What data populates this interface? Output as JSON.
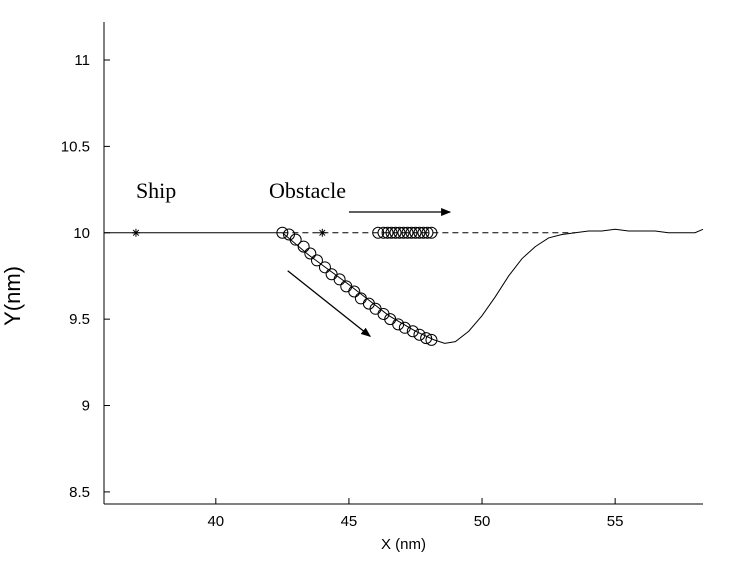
{
  "chart_data": {
    "type": "line",
    "title": "",
    "xlabel": "X (nm)",
    "ylabel": "Y(nm)",
    "xlim": [
      35.8,
      58.3
    ],
    "ylim": [
      8.43,
      11.22
    ],
    "xticks": [
      40,
      45,
      50,
      55
    ],
    "yticks": [
      8.5,
      9,
      9.5,
      10,
      10.5,
      11
    ],
    "grid": false,
    "annotations": [
      {
        "text": "Ship",
        "x": 37.0,
        "y": 10.2
      },
      {
        "text": "Obstacle",
        "x": 42.0,
        "y": 10.2
      }
    ],
    "markers": [
      {
        "name": "ship-start",
        "symbol": "*",
        "x": 37.0,
        "y": 10.0
      },
      {
        "name": "obstacle-start",
        "symbol": "*",
        "x": 44.0,
        "y": 10.0
      }
    ],
    "series": [
      {
        "style": "solid-line",
        "x": [
          35.8,
          42.5
        ],
        "y": [
          10.0,
          10.0
        ]
      },
      {
        "style": "dashed-line",
        "x": [
          42.5,
          53.5
        ],
        "y": [
          10.0,
          10.0
        ]
      },
      {
        "style": "solid-line",
        "x": [
          42.5,
          43.5,
          45.0,
          46.5,
          47.5,
          48.2,
          48.6,
          49.0,
          49.5,
          50.0,
          50.5,
          51.0,
          51.5,
          52.0,
          52.5,
          53.0,
          53.5,
          54.0,
          54.5,
          55.0,
          55.5,
          56.0,
          56.5,
          57.0,
          57.5,
          58.0,
          58.3
        ],
        "y": [
          10.0,
          9.87,
          9.7,
          9.52,
          9.43,
          9.38,
          9.36,
          9.37,
          9.43,
          9.52,
          9.63,
          9.75,
          9.85,
          9.92,
          9.97,
          9.99,
          10.0,
          10.01,
          10.01,
          10.02,
          10.01,
          10.01,
          10.01,
          10.0,
          10.0,
          10.0,
          10.02
        ]
      },
      {
        "style": "circles",
        "x": [
          42.5,
          42.75,
          43.0,
          43.3,
          43.55,
          43.8,
          44.1,
          44.35,
          44.65,
          44.9,
          45.2,
          45.45,
          45.75,
          46.0,
          46.3,
          46.55,
          46.85,
          47.1,
          47.4,
          47.65,
          47.9,
          48.1
        ],
        "y": [
          10.0,
          9.99,
          9.96,
          9.92,
          9.88,
          9.84,
          9.8,
          9.76,
          9.73,
          9.69,
          9.66,
          9.62,
          9.59,
          9.56,
          9.53,
          9.5,
          9.47,
          9.45,
          9.43,
          9.41,
          9.39,
          9.38
        ]
      },
      {
        "style": "circles",
        "x": [
          46.1,
          46.3,
          46.45,
          46.6,
          46.75,
          46.9,
          47.05,
          47.2,
          47.35,
          47.5,
          47.65,
          47.8,
          47.95,
          48.1
        ],
        "y": [
          10.0,
          10.0,
          10.0,
          10.0,
          10.0,
          10.0,
          10.0,
          10.0,
          10.0,
          10.0,
          10.0,
          10.0,
          10.0,
          10.0
        ]
      }
    ],
    "arrows": [
      {
        "name": "obstacle-direction",
        "from": [
          45.0,
          10.12
        ],
        "to": [
          48.8,
          10.12
        ]
      },
      {
        "name": "ship-direction",
        "from": [
          42.7,
          9.78
        ],
        "to": [
          45.8,
          9.4
        ]
      }
    ]
  }
}
